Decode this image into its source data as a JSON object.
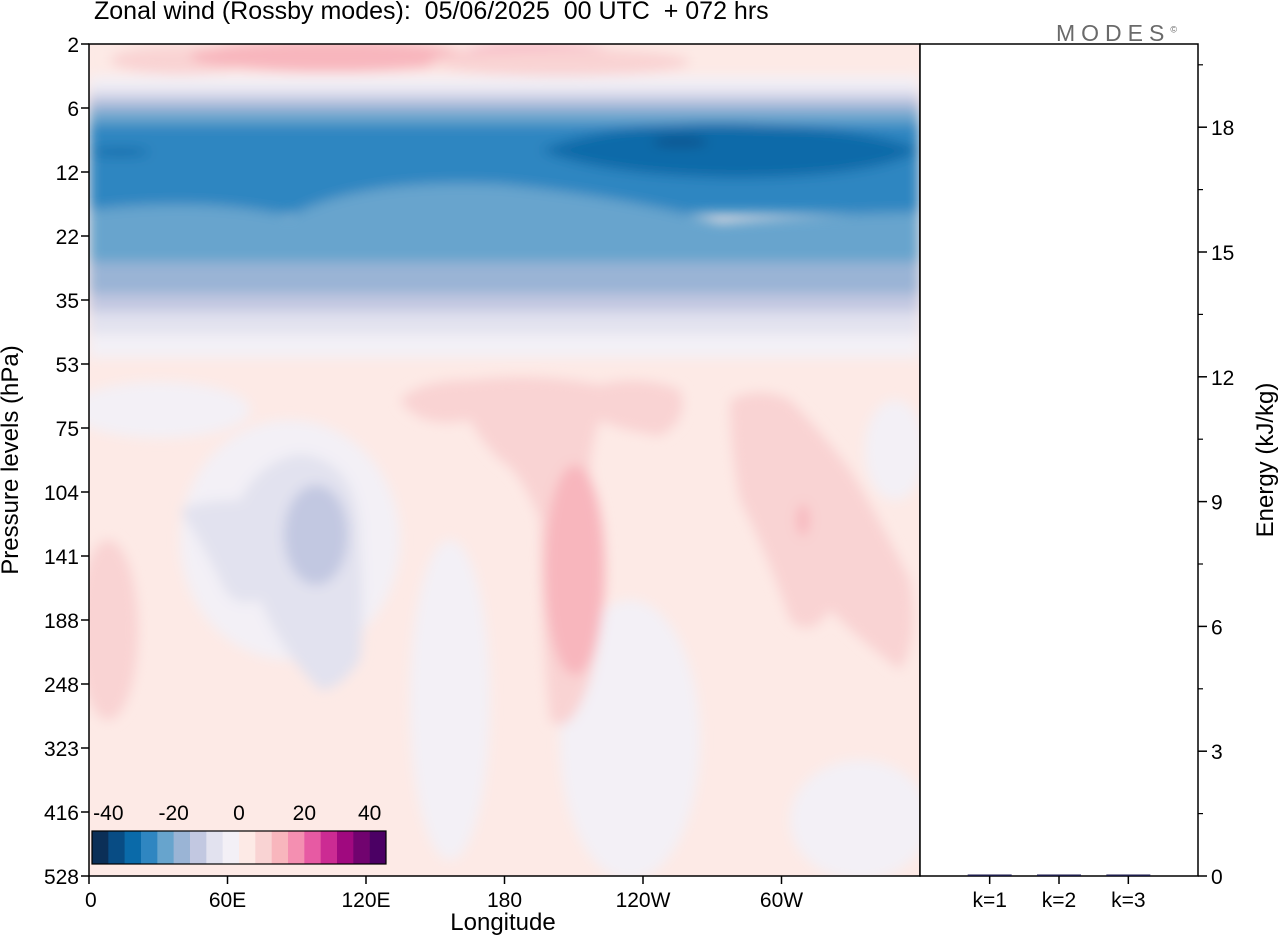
{
  "title": "Zonal wind (Rossby modes):  05/06/2025  00 UTC  + 072 hrs",
  "logo": "MODES",
  "logo_mark": "©",
  "chart_data": [
    {
      "type": "heatmap",
      "title": "Zonal wind (Rossby modes):  05/06/2025  00 UTC  + 072 hrs",
      "xlabel": "Longitude",
      "ylabel": "Pressure levels (hPa)",
      "x_ticks": [
        "0",
        "60E",
        "120E",
        "180",
        "120W",
        "60W"
      ],
      "x_tick_degrees": [
        0,
        60,
        120,
        180,
        240,
        300
      ],
      "xlim": [
        0,
        360
      ],
      "y_ticks": [
        "2",
        "6",
        "12",
        "22",
        "35",
        "53",
        "75",
        "104",
        "141",
        "188",
        "248",
        "323",
        "416",
        "528"
      ],
      "ylim": [
        2,
        528
      ],
      "y_axis": "pressure levels, decreasing upward",
      "colorbar": {
        "tick_labels": [
          "-40",
          "-20",
          "0",
          "20",
          "40"
        ],
        "range": [
          -45,
          45
        ],
        "step": 5,
        "colors": [
          "#0b2f57",
          "#084c84",
          "#0a6aa9",
          "#2f86c1",
          "#67a4cd",
          "#9ab4d5",
          "#c2c8e1",
          "#e2e2ef",
          "#f3f0f6",
          "#fdeae6",
          "#f9d3d3",
          "#f8b6bd",
          "#f48fb1",
          "#e75aa3",
          "#cc2b93",
          "#a0097f",
          "#71036f",
          "#4b0064"
        ],
        "location": "bottom-left inside plot"
      },
      "levels": [
        "2",
        "6",
        "12",
        "22",
        "35",
        "53",
        "75",
        "104",
        "141",
        "188",
        "248",
        "323",
        "416",
        "528"
      ],
      "zonal_mean_wind_by_level": [
        12,
        -20,
        -30,
        -27,
        -14,
        1,
        3,
        2,
        1,
        1,
        1,
        1,
        0,
        0
      ],
      "notes": [
        "Strong easterlies (-25 to -35) between 6 and 35 hPa",
        "Westerly maximum ~12 near 2 hPa",
        "Weak positive (5-10) plumes near 180-160W and 60W-30W between 53 and 323 hPa",
        "Weak negative (-5 to -10) region near 60E-120E between 75 and 248 hPa"
      ]
    },
    {
      "type": "bar",
      "categories": [
        "k=1",
        "k=2",
        "k=3"
      ],
      "values": [
        0.03,
        0.02,
        0.01
      ],
      "ylabel": "Energy (kJ/kg)",
      "ylim": [
        0,
        20
      ],
      "y_ticks": [
        "0",
        "3",
        "6",
        "9",
        "12",
        "15",
        "18"
      ]
    }
  ]
}
